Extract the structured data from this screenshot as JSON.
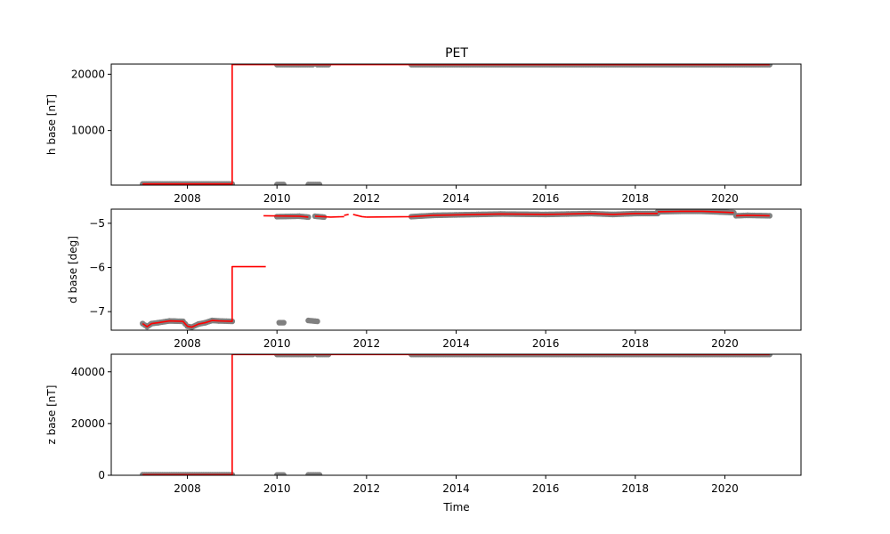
{
  "chart_data": [
    {
      "type": "scatter",
      "title": "PET",
      "xlabel": "",
      "ylabel": "h base [nT]",
      "xlim": [
        2006.3,
        2021.7
      ],
      "ylim": [
        300,
        21800
      ],
      "x_ticks": [
        2008,
        2010,
        2012,
        2014,
        2016,
        2018,
        2020
      ],
      "x_tick_labels": [
        "2008",
        "2010",
        "2012",
        "2014",
        "2016",
        "2018",
        "2020"
      ],
      "y_ticks": [
        10000,
        20000
      ],
      "y_tick_labels": [
        "10000",
        "20000"
      ],
      "series": [
        {
          "role": "measured points",
          "marker_color": "#808080",
          "segments": [
            {
              "x": [
                2007.0,
                2009.0
              ],
              "y": [
                500,
                500
              ]
            },
            {
              "x": [
                2010.0,
                2010.15
              ],
              "y": [
                400,
                400
              ]
            },
            {
              "x": [
                2010.7,
                2010.95
              ],
              "y": [
                400,
                400
              ]
            },
            {
              "x": [
                2010.0,
                2010.8
              ],
              "y": [
                21700,
                21700
              ]
            },
            {
              "x": [
                2010.9,
                2011.15
              ],
              "y": [
                21700,
                21700
              ]
            },
            {
              "x": [
                2013.0,
                2021.0
              ],
              "y": [
                21700,
                21700
              ]
            }
          ]
        },
        {
          "role": "baseline",
          "line_color": "#ff0000",
          "segments": [
            {
              "x": [
                2007.0,
                2009.0,
                2009.0,
                2021.0
              ],
              "y": [
                500,
                500,
                21700,
                21700
              ]
            }
          ]
        }
      ]
    },
    {
      "type": "scatter",
      "title": "",
      "xlabel": "",
      "ylabel": "d base [deg]",
      "xlim": [
        2006.3,
        2021.7
      ],
      "ylim": [
        -7.42,
        -4.68
      ],
      "x_ticks": [
        2008,
        2010,
        2012,
        2014,
        2016,
        2018,
        2020
      ],
      "x_tick_labels": [
        "2008",
        "2010",
        "2012",
        "2014",
        "2016",
        "2018",
        "2020"
      ],
      "y_ticks": [
        -7,
        -6,
        -5
      ],
      "y_tick_labels": [
        "−7",
        "−6",
        "−5"
      ],
      "series": [
        {
          "role": "measured points",
          "marker_color": "#808080",
          "segments": [
            {
              "x": [
                2007.0,
                2007.1,
                2007.2,
                2007.35,
                2007.6,
                2007.9,
                2008.0,
                2008.1,
                2008.25,
                2008.4,
                2008.55,
                2008.7,
                2009.0
              ],
              "y": [
                -7.27,
                -7.34,
                -7.27,
                -7.25,
                -7.21,
                -7.22,
                -7.33,
                -7.35,
                -7.28,
                -7.25,
                -7.2,
                -7.21,
                -7.22
              ]
            },
            {
              "x": [
                2010.05,
                2010.15
              ],
              "y": [
                -7.25,
                -7.25
              ]
            },
            {
              "x": [
                2010.7,
                2010.9
              ],
              "y": [
                -7.2,
                -7.22
              ]
            },
            {
              "x": [
                2010.0,
                2010.5,
                2010.7
              ],
              "y": [
                -4.85,
                -4.84,
                -4.86
              ]
            },
            {
              "x": [
                2010.85,
                2011.05
              ],
              "y": [
                -4.84,
                -4.86
              ]
            },
            {
              "x": [
                2013.0,
                2013.5,
                2014.0,
                2014.5,
                2015.0,
                2016.0,
                2016.5,
                2017.0,
                2017.5,
                2018.0,
                2018.5
              ],
              "y": [
                -4.85,
                -4.82,
                -4.81,
                -4.8,
                -4.79,
                -4.8,
                -4.79,
                -4.78,
                -4.8,
                -4.78,
                -4.78
              ]
            },
            {
              "x": [
                2018.5,
                2019.0,
                2019.5,
                2020.0,
                2020.2
              ],
              "y": [
                -4.74,
                -4.73,
                -4.73,
                -4.75,
                -4.76
              ]
            },
            {
              "x": [
                2020.25,
                2020.5,
                2021.0
              ],
              "y": [
                -4.83,
                -4.82,
                -4.83
              ]
            }
          ]
        },
        {
          "role": "baseline",
          "line_color": "#ff0000",
          "segments": [
            {
              "x": [
                2007.0,
                2007.1,
                2007.2,
                2007.35,
                2007.6,
                2007.9,
                2008.0,
                2008.1,
                2008.25,
                2008.4,
                2008.55,
                2008.7,
                2009.0,
                2009.0,
                2009.75
              ],
              "y": [
                -7.27,
                -7.34,
                -7.27,
                -7.25,
                -7.21,
                -7.22,
                -7.33,
                -7.35,
                -7.28,
                -7.25,
                -7.2,
                -7.21,
                -7.22,
                -5.98,
                -5.98
              ]
            },
            {
              "x": [
                2009.7,
                2010.5,
                2010.7
              ],
              "y": [
                -4.83,
                -4.84,
                -4.86
              ]
            },
            {
              "x": [
                2010.85,
                2011.2,
                2011.5
              ],
              "y": [
                -4.84,
                -4.86,
                -4.85
              ]
            },
            {
              "x": [
                2011.5,
                2011.6
              ],
              "y": [
                -4.82,
                -4.8
              ]
            },
            {
              "x": [
                2011.7,
                2011.9,
                2012.0
              ],
              "y": [
                -4.8,
                -4.85,
                -4.86
              ]
            },
            {
              "x": [
                2012.0,
                2013.0,
                2013.5,
                2014.0,
                2014.5,
                2015.0,
                2016.0,
                2016.5,
                2017.0,
                2017.5,
                2018.0,
                2018.5
              ],
              "y": [
                -4.86,
                -4.85,
                -4.82,
                -4.81,
                -4.8,
                -4.79,
                -4.8,
                -4.79,
                -4.78,
                -4.8,
                -4.78,
                -4.78
              ]
            },
            {
              "x": [
                2018.5,
                2019.0,
                2019.5,
                2020.0,
                2020.2
              ],
              "y": [
                -4.74,
                -4.73,
                -4.73,
                -4.75,
                -4.76
              ]
            },
            {
              "x": [
                2020.25,
                2020.5,
                2021.0
              ],
              "y": [
                -4.83,
                -4.82,
                -4.83
              ]
            }
          ]
        }
      ]
    },
    {
      "type": "scatter",
      "title": "",
      "xlabel": "Time",
      "ylabel": "z base [nT]",
      "xlim": [
        2006.3,
        2021.7
      ],
      "ylim": [
        0,
        46800
      ],
      "x_ticks": [
        2008,
        2010,
        2012,
        2014,
        2016,
        2018,
        2020
      ],
      "x_tick_labels": [
        "2008",
        "2010",
        "2012",
        "2014",
        "2016",
        "2018",
        "2020"
      ],
      "y_ticks": [
        0,
        20000,
        40000
      ],
      "y_tick_labels": [
        "0",
        "20000",
        "40000"
      ],
      "series": [
        {
          "role": "measured points",
          "marker_color": "#808080",
          "segments": [
            {
              "x": [
                2007.0,
                2009.0
              ],
              "y": [
                200,
                200
              ]
            },
            {
              "x": [
                2010.0,
                2010.15
              ],
              "y": [
                100,
                100
              ]
            },
            {
              "x": [
                2010.7,
                2010.95
              ],
              "y": [
                150,
                150
              ]
            },
            {
              "x": [
                2010.0,
                2010.8
              ],
              "y": [
                46700,
                46700
              ]
            },
            {
              "x": [
                2010.9,
                2011.15
              ],
              "y": [
                46700,
                46700
              ]
            },
            {
              "x": [
                2013.0,
                2021.0
              ],
              "y": [
                46700,
                46700
              ]
            }
          ]
        },
        {
          "role": "baseline",
          "line_color": "#ff0000",
          "segments": [
            {
              "x": [
                2007.0,
                2009.0,
                2009.0,
                2021.0
              ],
              "y": [
                200,
                200,
                46700,
                46700
              ]
            }
          ]
        }
      ]
    }
  ]
}
